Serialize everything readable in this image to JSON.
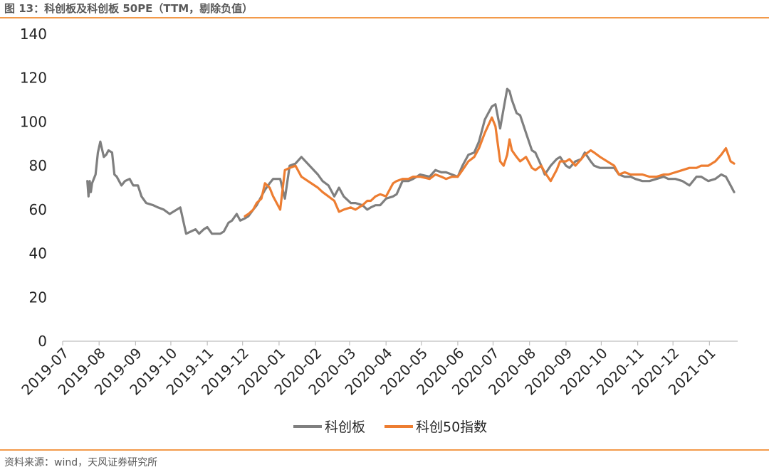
{
  "header": {
    "title": "图 13：科创板及科创板 50PE（TTM，剔除负值）"
  },
  "footer": {
    "source": "资料来源：wind，天风证券研究所"
  },
  "colors": {
    "accent": "#f39a4a",
    "series_gray": "#7f7f7f",
    "series_orange": "#ed7d31",
    "axis": "#bfbfbf"
  },
  "chart_data": {
    "type": "line",
    "title": "图 13：科创板及科创板 50PE（TTM，剔除负值）",
    "xlabel": "",
    "ylabel": "",
    "ylim": [
      0,
      140
    ],
    "yticks": [
      0,
      20,
      40,
      60,
      80,
      100,
      120,
      140
    ],
    "xticks": [
      "2019-07",
      "2019-08",
      "2019-09",
      "2019-10",
      "2019-11",
      "2019-12",
      "2020-01",
      "2020-02",
      "2020-03",
      "2020-04",
      "2020-05",
      "2020-06",
      "2020-07",
      "2020-08",
      "2020-09",
      "2020-10",
      "2020-11",
      "2020-12",
      "2021-01"
    ],
    "grid": false,
    "legend": "bottom",
    "series": [
      {
        "name": "科创板",
        "color": "#7f7f7f",
        "x": [
          "2019-07-22",
          "2019-07-23",
          "2019-07-24",
          "2019-07-25",
          "2019-07-26",
          "2019-07-29",
          "2019-07-31",
          "2019-08-02",
          "2019-08-05",
          "2019-08-07",
          "2019-08-09",
          "2019-08-12",
          "2019-08-14",
          "2019-08-16",
          "2019-08-20",
          "2019-08-23",
          "2019-08-27",
          "2019-08-30",
          "2019-09-03",
          "2019-09-06",
          "2019-09-10",
          "2019-09-16",
          "2019-09-20",
          "2019-09-25",
          "2019-09-30",
          "2019-10-09",
          "2019-10-14",
          "2019-10-18",
          "2019-10-22",
          "2019-10-25",
          "2019-10-29",
          "2019-11-01",
          "2019-11-05",
          "2019-11-08",
          "2019-11-12",
          "2019-11-15",
          "2019-11-19",
          "2019-11-22",
          "2019-11-26",
          "2019-11-29",
          "2019-12-03",
          "2019-12-06",
          "2019-12-10",
          "2019-12-13",
          "2019-12-17",
          "2019-12-20",
          "2019-12-24",
          "2019-12-27",
          "2020-01-02",
          "2020-01-06",
          "2020-01-10",
          "2020-01-15",
          "2020-01-20",
          "2020-02-03",
          "2020-02-07",
          "2020-02-12",
          "2020-02-17",
          "2020-02-21",
          "2020-02-25",
          "2020-03-02",
          "2020-03-06",
          "2020-03-12",
          "2020-03-16",
          "2020-03-19",
          "2020-03-23",
          "2020-03-27",
          "2020-04-01",
          "2020-04-07",
          "2020-04-10",
          "2020-04-15",
          "2020-04-20",
          "2020-04-24",
          "2020-04-30",
          "2020-05-08",
          "2020-05-13",
          "2020-05-18",
          "2020-05-22",
          "2020-05-27",
          "2020-06-01",
          "2020-06-05",
          "2020-06-10",
          "2020-06-15",
          "2020-06-19",
          "2020-06-24",
          "2020-06-30",
          "2020-07-03",
          "2020-07-07",
          "2020-07-10",
          "2020-07-13",
          "2020-07-15",
          "2020-07-17",
          "2020-07-21",
          "2020-07-24",
          "2020-07-29",
          "2020-08-03",
          "2020-08-06",
          "2020-08-11",
          "2020-08-14",
          "2020-08-19",
          "2020-08-24",
          "2020-08-27",
          "2020-09-01",
          "2020-09-04",
          "2020-09-09",
          "2020-09-14",
          "2020-09-17",
          "2020-09-22",
          "2020-09-25",
          "2020-09-30",
          "2020-10-12",
          "2020-10-16",
          "2020-10-21",
          "2020-10-26",
          "2020-10-30",
          "2020-11-05",
          "2020-11-11",
          "2020-11-17",
          "2020-11-23",
          "2020-11-27",
          "2020-12-03",
          "2020-12-09",
          "2020-12-15",
          "2020-12-21",
          "2020-12-25",
          "2020-12-31",
          "2021-01-06",
          "2021-01-11",
          "2021-01-15",
          "2021-01-19",
          "2021-01-22"
        ],
        "values": [
          73,
          66,
          73,
          68,
          72,
          76,
          86,
          91,
          84,
          85,
          87,
          86,
          76,
          75,
          71,
          73,
          74,
          71,
          71,
          66,
          63,
          62,
          61,
          60,
          58,
          61,
          49,
          50,
          51,
          49,
          51,
          52,
          49,
          49,
          49,
          50,
          54,
          55,
          58,
          55,
          56,
          57,
          60,
          62,
          66,
          69,
          72,
          74,
          74,
          65,
          80,
          81,
          84,
          76,
          73,
          71,
          66,
          70,
          66,
          63,
          63,
          62,
          60,
          61,
          62,
          62,
          65,
          66,
          67,
          73,
          73,
          74,
          76,
          75,
          78,
          77,
          77,
          76,
          75,
          80,
          85,
          86,
          91,
          101,
          107,
          108,
          97,
          106,
          115,
          114,
          110,
          104,
          103,
          95,
          87,
          86,
          80,
          76,
          80,
          83,
          84,
          80,
          79,
          82,
          83,
          86,
          82,
          80,
          79,
          79,
          76,
          75,
          75,
          74,
          73,
          73,
          74,
          75,
          74,
          74,
          73,
          71,
          75,
          75,
          73,
          74,
          76,
          75,
          71,
          68
        ]
      },
      {
        "name": "科创50指数",
        "color": "#ed7d31",
        "x": [
          "2019-12-03",
          "2019-12-06",
          "2019-12-10",
          "2019-12-13",
          "2019-12-17",
          "2019-12-20",
          "2019-12-24",
          "2019-12-27",
          "2020-01-02",
          "2020-01-06",
          "2020-01-10",
          "2020-01-15",
          "2020-01-20",
          "2020-02-03",
          "2020-02-07",
          "2020-02-12",
          "2020-02-17",
          "2020-02-21",
          "2020-02-25",
          "2020-03-02",
          "2020-03-06",
          "2020-03-12",
          "2020-03-16",
          "2020-03-19",
          "2020-03-23",
          "2020-03-27",
          "2020-04-01",
          "2020-04-07",
          "2020-04-10",
          "2020-04-15",
          "2020-04-20",
          "2020-04-24",
          "2020-04-30",
          "2020-05-08",
          "2020-05-13",
          "2020-05-18",
          "2020-05-22",
          "2020-05-27",
          "2020-06-01",
          "2020-06-05",
          "2020-06-10",
          "2020-06-15",
          "2020-06-19",
          "2020-06-24",
          "2020-06-30",
          "2020-07-03",
          "2020-07-07",
          "2020-07-10",
          "2020-07-13",
          "2020-07-15",
          "2020-07-17",
          "2020-07-21",
          "2020-07-24",
          "2020-07-29",
          "2020-08-03",
          "2020-08-06",
          "2020-08-11",
          "2020-08-14",
          "2020-08-19",
          "2020-08-24",
          "2020-08-27",
          "2020-09-01",
          "2020-09-04",
          "2020-09-09",
          "2020-09-14",
          "2020-09-17",
          "2020-09-22",
          "2020-09-25",
          "2020-09-30",
          "2020-10-12",
          "2020-10-16",
          "2020-10-21",
          "2020-10-26",
          "2020-10-30",
          "2020-11-05",
          "2020-11-11",
          "2020-11-17",
          "2020-11-23",
          "2020-11-27",
          "2020-12-03",
          "2020-12-09",
          "2020-12-15",
          "2020-12-21",
          "2020-12-25",
          "2020-12-31",
          "2021-01-06",
          "2021-01-11",
          "2021-01-15",
          "2021-01-19",
          "2021-01-22"
        ],
        "values": [
          57,
          58,
          60,
          63,
          65,
          72,
          70,
          66,
          60,
          78,
          79,
          80,
          75,
          70,
          68,
          66,
          64,
          59,
          60,
          61,
          60,
          62,
          64,
          64,
          66,
          67,
          66,
          72,
          73,
          74,
          74,
          75,
          75,
          74,
          76,
          75,
          74,
          75,
          75,
          78,
          82,
          84,
          88,
          95,
          102,
          98,
          82,
          80,
          85,
          92,
          87,
          84,
          82,
          84,
          79,
          78,
          80,
          77,
          73,
          78,
          82,
          82,
          83,
          80,
          83,
          85,
          87,
          86,
          84,
          80,
          76,
          77,
          76,
          76,
          76,
          75,
          75,
          76,
          76,
          77,
          78,
          79,
          79,
          80,
          80,
          82,
          85,
          88,
          82,
          81
        ]
      }
    ]
  }
}
